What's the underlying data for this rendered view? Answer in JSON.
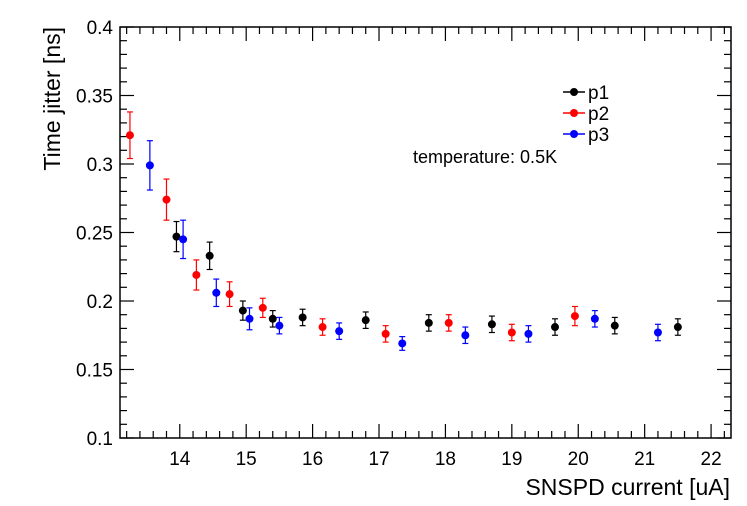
{
  "chart_data": {
    "type": "scatter",
    "title": "",
    "xlabel": "SNSPD current [uA]",
    "ylabel": "Time jitter [ns]",
    "xlim": [
      13.1,
      22.3
    ],
    "ylim": [
      0.1,
      0.4
    ],
    "x_ticks": [
      "14",
      "15",
      "16",
      "17",
      "18",
      "19",
      "20",
      "21",
      "22"
    ],
    "y_ticks": [
      "0.1",
      "0.15",
      "0.2",
      "0.25",
      "0.3",
      "0.35",
      "0.4"
    ],
    "annotation": "temperature: 0.5K",
    "legend_position": "top-right",
    "series": [
      {
        "name": "p1",
        "color": "#000000",
        "points": [
          {
            "x": 13.95,
            "y": 0.247,
            "err": 0.011
          },
          {
            "x": 14.45,
            "y": 0.233,
            "err": 0.01
          },
          {
            "x": 14.95,
            "y": 0.193,
            "err": 0.007
          },
          {
            "x": 15.4,
            "y": 0.187,
            "err": 0.006
          },
          {
            "x": 15.85,
            "y": 0.188,
            "err": 0.006
          },
          {
            "x": 16.8,
            "y": 0.186,
            "err": 0.006
          },
          {
            "x": 17.75,
            "y": 0.184,
            "err": 0.006
          },
          {
            "x": 18.7,
            "y": 0.183,
            "err": 0.006
          },
          {
            "x": 19.65,
            "y": 0.181,
            "err": 0.006
          },
          {
            "x": 20.55,
            "y": 0.182,
            "err": 0.006
          },
          {
            "x": 21.5,
            "y": 0.181,
            "err": 0.006
          }
        ]
      },
      {
        "name": "p2",
        "color": "#ff0000",
        "points": [
          {
            "x": 13.25,
            "y": 0.321,
            "err": 0.017
          },
          {
            "x": 13.8,
            "y": 0.274,
            "err": 0.015
          },
          {
            "x": 14.25,
            "y": 0.219,
            "err": 0.011
          },
          {
            "x": 14.75,
            "y": 0.205,
            "err": 0.009
          },
          {
            "x": 15.25,
            "y": 0.195,
            "err": 0.007
          },
          {
            "x": 16.15,
            "y": 0.181,
            "err": 0.006
          },
          {
            "x": 17.1,
            "y": 0.176,
            "err": 0.006
          },
          {
            "x": 18.05,
            "y": 0.184,
            "err": 0.006
          },
          {
            "x": 19.0,
            "y": 0.177,
            "err": 0.006
          },
          {
            "x": 19.95,
            "y": 0.189,
            "err": 0.007
          }
        ]
      },
      {
        "name": "p3",
        "color": "#0000ff",
        "points": [
          {
            "x": 13.55,
            "y": 0.299,
            "err": 0.018
          },
          {
            "x": 14.05,
            "y": 0.245,
            "err": 0.014
          },
          {
            "x": 14.55,
            "y": 0.206,
            "err": 0.01
          },
          {
            "x": 15.05,
            "y": 0.187,
            "err": 0.008
          },
          {
            "x": 15.5,
            "y": 0.182,
            "err": 0.006
          },
          {
            "x": 16.4,
            "y": 0.178,
            "err": 0.006
          },
          {
            "x": 17.35,
            "y": 0.169,
            "err": 0.005
          },
          {
            "x": 18.3,
            "y": 0.175,
            "err": 0.006
          },
          {
            "x": 19.25,
            "y": 0.176,
            "err": 0.006
          },
          {
            "x": 20.25,
            "y": 0.187,
            "err": 0.006
          },
          {
            "x": 21.2,
            "y": 0.177,
            "err": 0.006
          }
        ]
      }
    ]
  }
}
